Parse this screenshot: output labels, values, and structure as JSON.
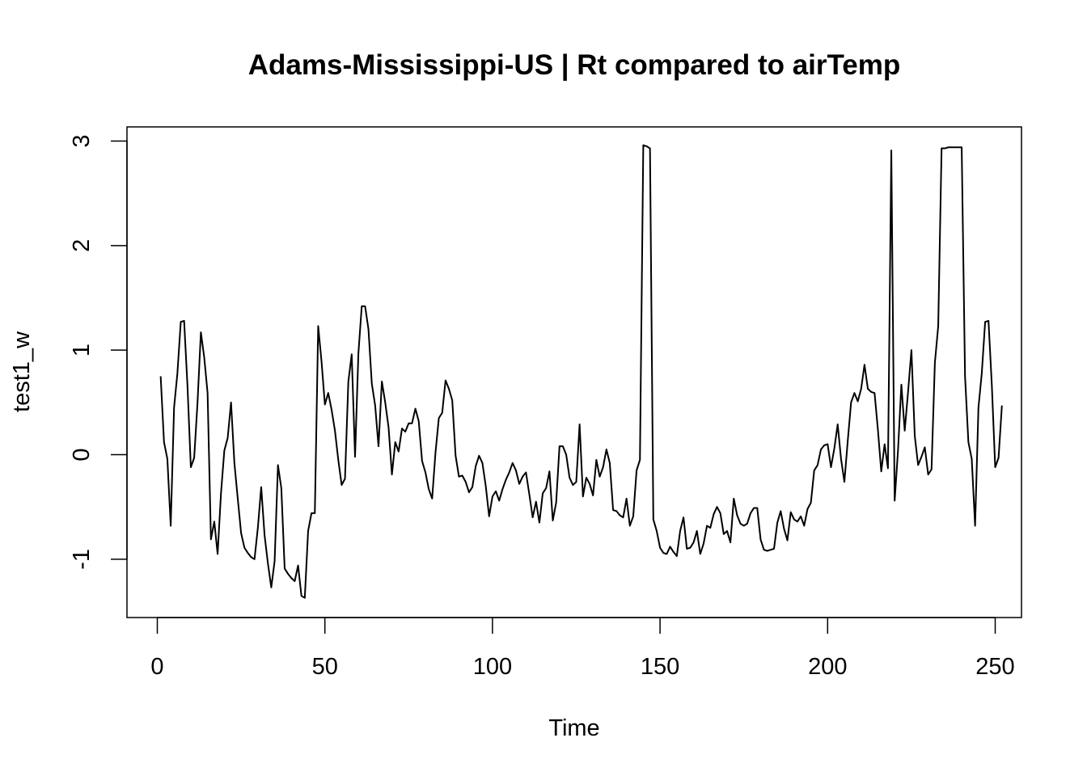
{
  "chart_data": {
    "type": "line",
    "title": "Adams-Mississippi-US | Rt compared to airTemp",
    "xlabel": "Time",
    "ylabel": "test1_w",
    "xlim": [
      0,
      250
    ],
    "ylim": [
      -1.5,
      3
    ],
    "x_ticks": [
      0,
      50,
      100,
      150,
      200,
      250
    ],
    "y_ticks": [
      -1,
      0,
      1,
      2,
      3
    ],
    "x_tick_labels": [
      "0",
      "50",
      "100",
      "150",
      "200",
      "250"
    ],
    "y_tick_labels": [
      "-1",
      "0",
      "1",
      "2",
      "3"
    ],
    "grid": false,
    "legend": "none",
    "line_color": "#000000",
    "x_start": 1,
    "x_step": 1,
    "values": [
      0.75,
      0.12,
      -0.04,
      -0.68,
      0.45,
      0.78,
      1.27,
      1.28,
      0.66,
      -0.12,
      -0.03,
      0.5,
      1.17,
      0.93,
      0.59,
      -0.81,
      -0.64,
      -0.95,
      -0.37,
      0.04,
      0.16,
      0.5,
      -0.08,
      -0.42,
      -0.75,
      -0.89,
      -0.94,
      -0.98,
      -1.0,
      -0.7,
      -0.31,
      -0.77,
      -1.04,
      -1.27,
      -1.02,
      -0.1,
      -0.32,
      -1.09,
      -1.14,
      -1.18,
      -1.21,
      -1.06,
      -1.35,
      -1.37,
      -0.73,
      -0.56,
      -0.56,
      1.23,
      0.89,
      0.48,
      0.59,
      0.43,
      0.23,
      -0.05,
      -0.29,
      -0.23,
      0.7,
      0.96,
      -0.02,
      0.97,
      1.42,
      1.42,
      1.2,
      0.68,
      0.47,
      0.08,
      0.7,
      0.5,
      0.26,
      -0.19,
      0.12,
      0.03,
      0.25,
      0.22,
      0.3,
      0.3,
      0.44,
      0.32,
      -0.06,
      -0.17,
      -0.33,
      -0.42,
      0.02,
      0.35,
      0.4,
      0.71,
      0.63,
      0.52,
      -0.01,
      -0.21,
      -0.2,
      -0.26,
      -0.36,
      -0.31,
      -0.11,
      -0.01,
      -0.08,
      -0.3,
      -0.59,
      -0.4,
      -0.35,
      -0.44,
      -0.33,
      -0.24,
      -0.17,
      -0.08,
      -0.15,
      -0.28,
      -0.21,
      -0.17,
      -0.38,
      -0.6,
      -0.45,
      -0.65,
      -0.37,
      -0.32,
      -0.16,
      -0.63,
      -0.46,
      0.08,
      0.08,
      0.0,
      -0.22,
      -0.29,
      -0.26,
      0.29,
      -0.4,
      -0.22,
      -0.28,
      -0.39,
      -0.05,
      -0.21,
      -0.12,
      0.05,
      -0.08,
      -0.53,
      -0.54,
      -0.58,
      -0.6,
      -0.42,
      -0.68,
      -0.59,
      -0.15,
      -0.05,
      2.96,
      2.95,
      2.93,
      -0.62,
      -0.73,
      -0.89,
      -0.94,
      -0.95,
      -0.88,
      -0.93,
      -0.97,
      -0.73,
      -0.6,
      -0.9,
      -0.89,
      -0.84,
      -0.73,
      -0.95,
      -0.85,
      -0.68,
      -0.7,
      -0.57,
      -0.5,
      -0.56,
      -0.76,
      -0.73,
      -0.84,
      -0.42,
      -0.58,
      -0.66,
      -0.68,
      -0.66,
      -0.56,
      -0.51,
      -0.51,
      -0.81,
      -0.91,
      -0.92,
      -0.91,
      -0.9,
      -0.65,
      -0.54,
      -0.71,
      -0.82,
      -0.55,
      -0.62,
      -0.64,
      -0.59,
      -0.68,
      -0.52,
      -0.46,
      -0.15,
      -0.1,
      0.05,
      0.09,
      0.1,
      -0.12,
      0.06,
      0.29,
      -0.04,
      -0.26,
      0.13,
      0.5,
      0.59,
      0.51,
      0.63,
      0.86,
      0.63,
      0.6,
      0.59,
      0.24,
      -0.16,
      0.1,
      -0.13,
      2.91,
      -0.44,
      0.04,
      0.67,
      0.23,
      0.6,
      1.0,
      0.18,
      -0.1,
      -0.02,
      0.07,
      -0.19,
      -0.14,
      0.88,
      1.23,
      2.93,
      2.93,
      2.94,
      2.94,
      2.94,
      2.94,
      2.94,
      0.75,
      0.12,
      -0.04,
      -0.68,
      0.45,
      0.78,
      1.27,
      1.28,
      0.66,
      -0.12,
      -0.03,
      0.47
    ]
  }
}
